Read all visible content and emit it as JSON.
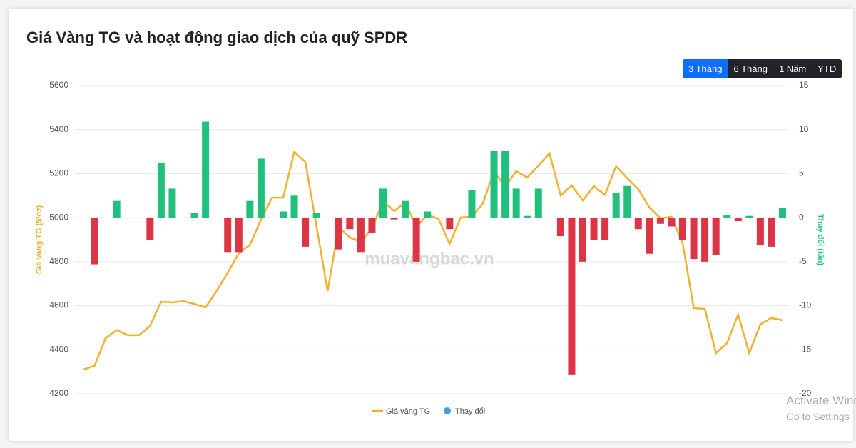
{
  "header": {
    "title": "Giá Vàng TG và hoạt động giao dịch của quỹ SPDR"
  },
  "range_buttons": {
    "labels": [
      "3 Tháng",
      "6 Tháng",
      "1 Năm",
      "YTD"
    ],
    "active": 0
  },
  "watermark": "muavangbac.vn",
  "os_overlay": {
    "line1": "Activate Windows",
    "line2": "Go to Settings"
  },
  "chart_data": {
    "type": "bar-line",
    "categories": [
      null,
      null,
      null,
      null,
      null,
      null,
      null,
      null,
      null,
      null,
      null,
      null,
      null,
      null,
      null,
      null,
      null,
      null,
      null,
      null,
      null,
      null,
      null,
      null,
      null,
      null,
      null,
      null,
      null,
      null,
      null,
      null,
      null,
      null,
      null,
      null,
      null,
      null,
      null,
      null,
      null,
      null,
      null,
      null,
      null,
      null,
      null,
      null,
      null,
      null,
      null,
      null,
      null,
      null,
      null,
      null,
      null,
      null,
      null,
      null,
      null,
      null,
      null,
      null
    ],
    "y_label": "Giá vàng TG ($/oz)",
    "y2_label": "Thay đổi (tấn)",
    "ylim": [
      4200,
      5600
    ],
    "yticks": [
      4200,
      4400,
      4600,
      4800,
      5000,
      5200,
      5400,
      5600
    ],
    "y2lim": [
      -20,
      15
    ],
    "y2ticks": [
      -20,
      -15,
      -10,
      -5,
      0,
      5,
      10,
      15
    ],
    "grid": true,
    "series": [
      {
        "name": "Giá vàng TG",
        "type": "line",
        "color": "#f0b030",
        "values": [
          4310,
          4327,
          4453,
          4489,
          4466,
          4466,
          4508,
          4618,
          4615,
          4621,
          4608,
          4592,
          4667,
          4751,
          4838,
          4877,
          4991,
          5091,
          5091,
          5299,
          5253,
          4962,
          4667,
          4958,
          4910,
          4890,
          4952,
          5075,
          5030,
          5069,
          4958,
          5013,
          4994,
          4881,
          5001,
          5004,
          5065,
          5211,
          5140,
          5211,
          5182,
          5237,
          5292,
          5101,
          5146,
          5078,
          5143,
          5104,
          5234,
          5179,
          5130,
          5046,
          4997,
          5004,
          4884,
          4589,
          4586,
          4385,
          4430,
          4560,
          4385,
          4515,
          4544,
          4534
        ]
      },
      {
        "name": "Thay đổi",
        "type": "bar",
        "axis": "y2",
        "color": "#36a2eb",
        "positive_color": "#22c07d",
        "negative_color": "#dc3545",
        "values": [
          null,
          -5.3,
          null,
          1.9,
          null,
          null,
          -2.5,
          6.2,
          3.3,
          null,
          0.5,
          10.9,
          null,
          -3.9,
          -3.9,
          1.9,
          6.7,
          null,
          0.7,
          2.5,
          -3.3,
          0.5,
          null,
          -3.6,
          -1.3,
          -3.9,
          -1.7,
          3.3,
          -0.2,
          1.9,
          -5.0,
          0.7,
          null,
          -1.3,
          null,
          3.1,
          null,
          7.6,
          7.6,
          3.3,
          0.2,
          3.3,
          null,
          -2.1,
          -17.8,
          -5.0,
          -2.5,
          -2.5,
          2.8,
          3.6,
          -1.3,
          -4.1,
          -0.7,
          -1.0,
          -2.5,
          -4.7,
          -5.0,
          -4.2,
          0.3,
          -0.4,
          0.2,
          -3.1,
          -3.3,
          1.1
        ]
      }
    ]
  }
}
